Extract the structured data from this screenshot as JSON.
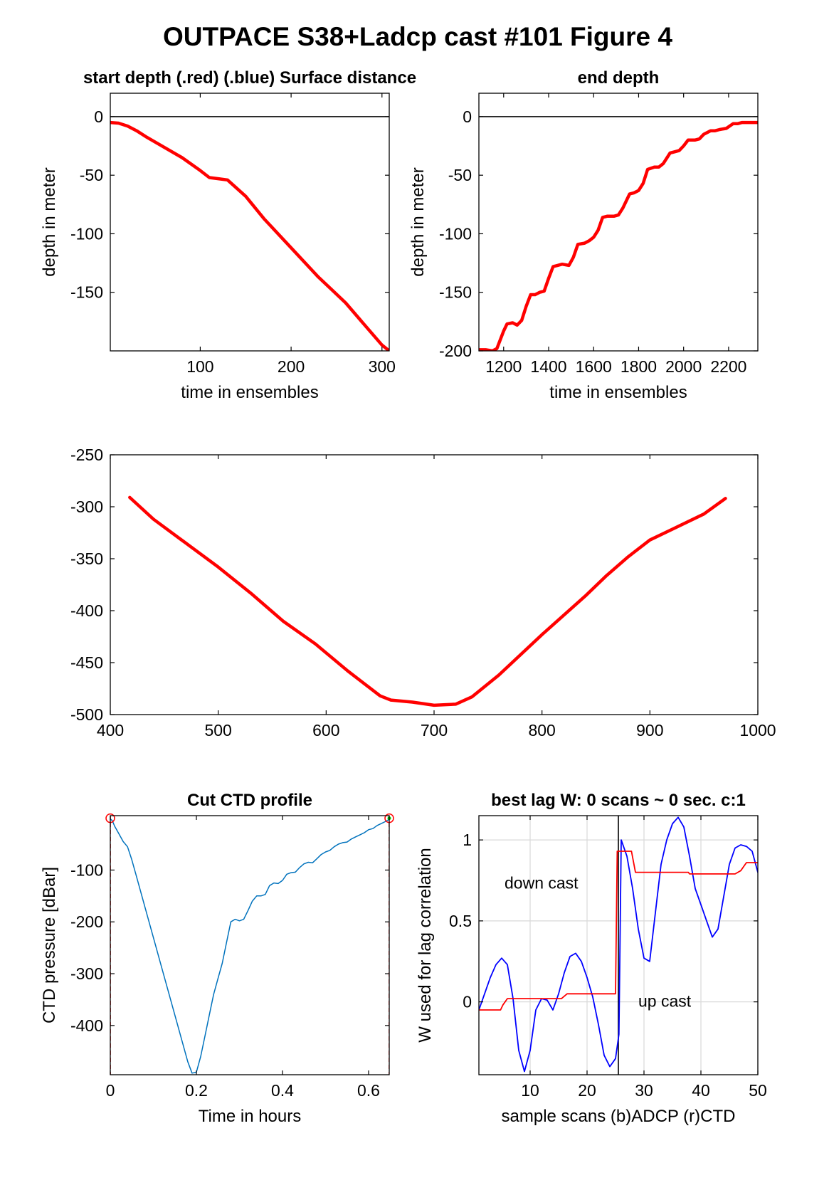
{
  "figure_title": "OUTPACE S38+Ladcp cast #101    Figure 4",
  "colors": {
    "red": "#ff0000",
    "blue": "#0000ff",
    "ctd_blue": "#0072bd",
    "axis": "#000000",
    "grid": "#d9d9d9",
    "green": "#00cc00"
  },
  "chart_data": [
    {
      "type": "line",
      "title": "start depth (.red) (.blue) Surface distance",
      "xlabel": "time in ensembles",
      "ylabel": "depth in meter",
      "xlim": [
        1,
        308
      ],
      "ylim": [
        -200,
        20
      ],
      "xticks": [
        100,
        200,
        300
      ],
      "yticks": [
        0,
        -50,
        -100,
        -150
      ],
      "hline": 0,
      "series": [
        {
          "color": "red",
          "x": [
            1,
            10,
            20,
            30,
            40,
            60,
            80,
            100,
            110,
            120,
            130,
            150,
            170,
            200,
            230,
            245,
            260,
            280,
            300,
            308
          ],
          "y": [
            -5,
            -5.5,
            -8,
            -12,
            -17,
            -26,
            -35,
            -46,
            -52,
            -53,
            -54,
            -68,
            -87,
            -112,
            -137,
            -148,
            -159,
            -177,
            -195,
            -200
          ]
        }
      ]
    },
    {
      "type": "line",
      "title": "end depth",
      "xlabel": "time in ensembles",
      "ylabel": "depth in meter",
      "xlim": [
        1090,
        2330
      ],
      "ylim": [
        -200,
        20
      ],
      "xticks": [
        1200,
        1400,
        1600,
        1800,
        2000,
        2200
      ],
      "yticks": [
        0,
        -50,
        -100,
        -150,
        -200
      ],
      "hline": 0,
      "series": [
        {
          "color": "red",
          "x": [
            1090,
            1120,
            1150,
            1170,
            1200,
            1215,
            1240,
            1260,
            1280,
            1300,
            1320,
            1340,
            1360,
            1380,
            1400,
            1420,
            1440,
            1460,
            1490,
            1510,
            1530,
            1560,
            1580,
            1600,
            1620,
            1640,
            1660,
            1690,
            1710,
            1730,
            1760,
            1780,
            1800,
            1820,
            1840,
            1870,
            1890,
            1910,
            1940,
            1960,
            1980,
            2000,
            2020,
            2050,
            2070,
            2090,
            2120,
            2140,
            2160,
            2190,
            2220,
            2240,
            2260,
            2280,
            2300,
            2330
          ],
          "y": [
            -199,
            -199,
            -200,
            -198,
            -183,
            -177,
            -176,
            -178,
            -174,
            -162,
            -152,
            -152,
            -150,
            -149,
            -138,
            -128,
            -127,
            -126,
            -127,
            -120,
            -109,
            -108,
            -106,
            -103,
            -97,
            -86,
            -85,
            -85,
            -84,
            -78,
            -66,
            -65,
            -63,
            -57,
            -45,
            -43,
            -43,
            -40,
            -31,
            -30,
            -29,
            -25,
            -20,
            -20,
            -19,
            -15,
            -12,
            -12,
            -11,
            -10,
            -6,
            -6,
            -5,
            -5,
            -5,
            -5
          ]
        }
      ]
    },
    {
      "type": "line",
      "title": "",
      "xlabel": "",
      "ylabel": "",
      "xlim": [
        400,
        1000
      ],
      "ylim": [
        -500,
        -250
      ],
      "xticks": [
        400,
        500,
        600,
        700,
        800,
        900,
        1000
      ],
      "yticks": [
        -250,
        -300,
        -350,
        -400,
        -450,
        -500
      ],
      "series": [
        {
          "color": "red",
          "x": [
            418,
            440,
            470,
            500,
            530,
            560,
            590,
            620,
            650,
            660,
            680,
            700,
            720,
            735,
            760,
            800,
            840,
            860,
            880,
            900,
            920,
            950,
            970
          ],
          "y": [
            -291,
            -312,
            -335,
            -358,
            -383,
            -410,
            -432,
            -458,
            -482,
            -486,
            -488,
            -491,
            -490,
            -483,
            -462,
            -423,
            -386,
            -366,
            -348,
            -332,
            -322,
            -307,
            -292
          ]
        }
      ]
    },
    {
      "type": "line",
      "title": "Cut CTD profile",
      "xlabel": "Time in hours",
      "ylabel": "CTD pressure [dBar]",
      "xlim": [
        0,
        0.648
      ],
      "ylim": [
        -495,
        5
      ],
      "xticks": [
        0,
        0.2,
        0.4,
        0.6
      ],
      "yticks": [
        -100,
        -200,
        -300,
        -400
      ],
      "series": [
        {
          "color": "ctd_blue",
          "x": [
            0,
            0.005,
            0.01,
            0.02,
            0.03,
            0.04,
            0.05,
            0.06,
            0.08,
            0.1,
            0.12,
            0.14,
            0.16,
            0.18,
            0.19,
            0.2,
            0.21,
            0.22,
            0.23,
            0.24,
            0.25,
            0.26,
            0.27,
            0.28,
            0.29,
            0.3,
            0.31,
            0.32,
            0.33,
            0.34,
            0.35,
            0.36,
            0.37,
            0.38,
            0.39,
            0.4,
            0.41,
            0.42,
            0.43,
            0.44,
            0.45,
            0.46,
            0.47,
            0.48,
            0.49,
            0.5,
            0.51,
            0.52,
            0.53,
            0.54,
            0.55,
            0.56,
            0.57,
            0.58,
            0.59,
            0.6,
            0.61,
            0.62,
            0.63,
            0.64,
            0.648
          ],
          "y": [
            -1,
            -5,
            -15,
            -30,
            -45,
            -55,
            -80,
            -110,
            -170,
            -230,
            -290,
            -350,
            -410,
            -470,
            -492,
            -490,
            -460,
            -420,
            -380,
            -340,
            -310,
            -280,
            -240,
            -200,
            -195,
            -198,
            -195,
            -178,
            -160,
            -150,
            -150,
            -147,
            -130,
            -125,
            -126,
            -120,
            -108,
            -105,
            -104,
            -95,
            -88,
            -85,
            -86,
            -78,
            -70,
            -65,
            -62,
            -55,
            -50,
            -47,
            -46,
            -40,
            -36,
            -32,
            -28,
            -22,
            -20,
            -14,
            -10,
            -6,
            -2
          ]
        }
      ],
      "markers": [
        {
          "x": 0,
          "y": 0
        },
        {
          "x": 0.648,
          "y": 0
        }
      ]
    },
    {
      "type": "line",
      "title": "best lag W: 0 scans ~ 0 sec.  c:1",
      "xlabel": "sample scans (b)ADCP (r)CTD",
      "ylabel": "W used for lag correlation",
      "xlim": [
        1,
        50
      ],
      "ylim": [
        -0.45,
        1.15
      ],
      "xticks": [
        10,
        20,
        30,
        40,
        50
      ],
      "yticks": [
        0,
        0.5,
        1
      ],
      "grid": true,
      "vline": 25.5,
      "annotations": [
        {
          "x": 5.5,
          "y": 0.7,
          "text": "down cast"
        },
        {
          "x": 29,
          "y": -0.03,
          "text": "up cast"
        }
      ],
      "series": [
        {
          "name": "ADCP",
          "color": "blue",
          "x": [
            1,
            2,
            3,
            4,
            5,
            6,
            7,
            8,
            9,
            10,
            11,
            12,
            13,
            14,
            15,
            16,
            17,
            18,
            19,
            20,
            21,
            22,
            23,
            24,
            25,
            25.6,
            26,
            27,
            28,
            29,
            30,
            31,
            32,
            33,
            34,
            35,
            36,
            37,
            38,
            39,
            40,
            41,
            42,
            43,
            44,
            45,
            46,
            47,
            48,
            49,
            50
          ],
          "y": [
            -0.05,
            0.05,
            0.15,
            0.23,
            0.27,
            0.23,
            0.02,
            -0.3,
            -0.43,
            -0.3,
            -0.05,
            0.02,
            0.01,
            -0.05,
            0.05,
            0.18,
            0.28,
            0.3,
            0.25,
            0.15,
            0.03,
            -0.14,
            -0.33,
            -0.4,
            -0.35,
            -0.2,
            1.0,
            0.9,
            0.7,
            0.45,
            0.27,
            0.25,
            0.55,
            0.85,
            1.0,
            1.1,
            1.14,
            1.08,
            0.9,
            0.7,
            0.6,
            0.5,
            0.4,
            0.45,
            0.65,
            0.85,
            0.95,
            0.97,
            0.96,
            0.93,
            0.8
          ]
        },
        {
          "name": "CTD",
          "color": "red",
          "x": [
            1,
            4.8,
            5.2,
            6,
            15.5,
            16.5,
            25,
            25.3,
            26.5,
            27.8,
            28.5,
            37.8,
            38,
            45,
            46,
            47,
            48,
            50
          ],
          "y": [
            -0.05,
            -0.05,
            -0.02,
            0.02,
            0.02,
            0.05,
            0.05,
            0.93,
            0.93,
            0.93,
            0.8,
            0.8,
            0.79,
            0.79,
            0.79,
            0.81,
            0.86,
            0.86
          ]
        }
      ]
    }
  ]
}
